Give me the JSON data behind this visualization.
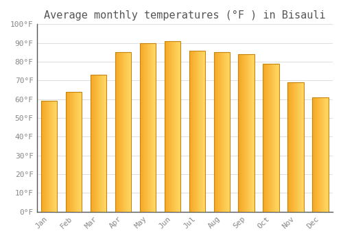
{
  "title": "Average monthly temperatures (°F ) in Bisauli",
  "months": [
    "Jan",
    "Feb",
    "Mar",
    "Apr",
    "May",
    "Jun",
    "Jul",
    "Aug",
    "Sep",
    "Oct",
    "Nov",
    "Dec"
  ],
  "values": [
    59,
    64,
    73,
    85,
    90,
    91,
    86,
    85,
    84,
    79,
    69,
    61
  ],
  "ylim": [
    0,
    100
  ],
  "yticks": [
    0,
    10,
    20,
    30,
    40,
    50,
    60,
    70,
    80,
    90,
    100
  ],
  "ytick_labels": [
    "0°F",
    "10°F",
    "20°F",
    "30°F",
    "40°F",
    "50°F",
    "60°F",
    "70°F",
    "80°F",
    "90°F",
    "100°F"
  ],
  "background_color": "#ffffff",
  "grid_color": "#e0e0e0",
  "title_fontsize": 11,
  "tick_fontsize": 8,
  "bar_edge_color": "#c8830a",
  "bar_color_left": "#F5A623",
  "bar_color_right": "#FFD966",
  "bar_width": 0.65
}
